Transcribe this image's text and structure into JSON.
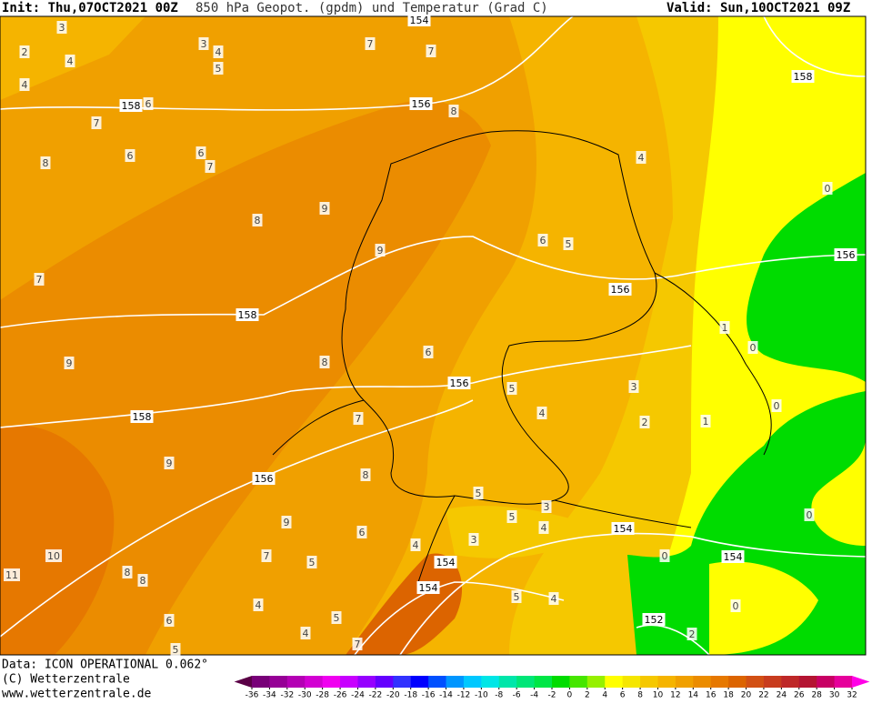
{
  "header": {
    "init": "Init: Thu,07OCT2021 00Z",
    "title": "850 hPa Geopot. (gpdm) und Temperatur (Grad C)",
    "valid": "Valid: Sun,10OCT2021 09Z"
  },
  "footer": {
    "data": "Data: ICON OPERATIONAL 0.062°",
    "copyright": "(C) Wetterzentrale",
    "url": "www.wetterzentrale.de"
  },
  "map": {
    "geopotential_labels": [
      154,
      158,
      158,
      156,
      156,
      156,
      158,
      156,
      158,
      156,
      154,
      154,
      154,
      154,
      152
    ],
    "temperature_labels": [
      3,
      2,
      3,
      4,
      5,
      4,
      4,
      6,
      7,
      7,
      8,
      7,
      8,
      6,
      6,
      7,
      4,
      0,
      9,
      8,
      9,
      6,
      5,
      7,
      1,
      0,
      6,
      8,
      9,
      5,
      3,
      4,
      0,
      7,
      2,
      1,
      9,
      8,
      5,
      3,
      5,
      0,
      9,
      6,
      4,
      3,
      4,
      7,
      5,
      0,
      10,
      11,
      8,
      8,
      5,
      4,
      0,
      4,
      6,
      5,
      4,
      2,
      5,
      7
    ]
  },
  "legend": {
    "ticks": [
      -36,
      -34,
      -32,
      -30,
      -28,
      -26,
      -24,
      -22,
      -20,
      -18,
      -16,
      -14,
      -12,
      -10,
      -8,
      -6,
      -4,
      -2,
      0,
      2,
      4,
      6,
      8,
      10,
      12,
      14,
      16,
      18,
      20,
      22,
      24,
      26,
      28,
      30,
      32
    ],
    "colors": [
      "#5a0046",
      "#780078",
      "#960096",
      "#b400b4",
      "#d200d2",
      "#f000f0",
      "#c800ff",
      "#9600ff",
      "#6400ff",
      "#3232ff",
      "#0000ff",
      "#0050ff",
      "#0096ff",
      "#00c8ff",
      "#00e6e6",
      "#00e6aa",
      "#00e678",
      "#00e646",
      "#00dc00",
      "#46e600",
      "#96f000",
      "#ffff00",
      "#f5e600",
      "#f5c800",
      "#f5b400",
      "#f0a000",
      "#eb8c00",
      "#e67800",
      "#dc6400",
      "#d25014",
      "#c83c1e",
      "#be2828",
      "#b41432",
      "#c80064",
      "#e6009b",
      "#ff00e6"
    ]
  }
}
